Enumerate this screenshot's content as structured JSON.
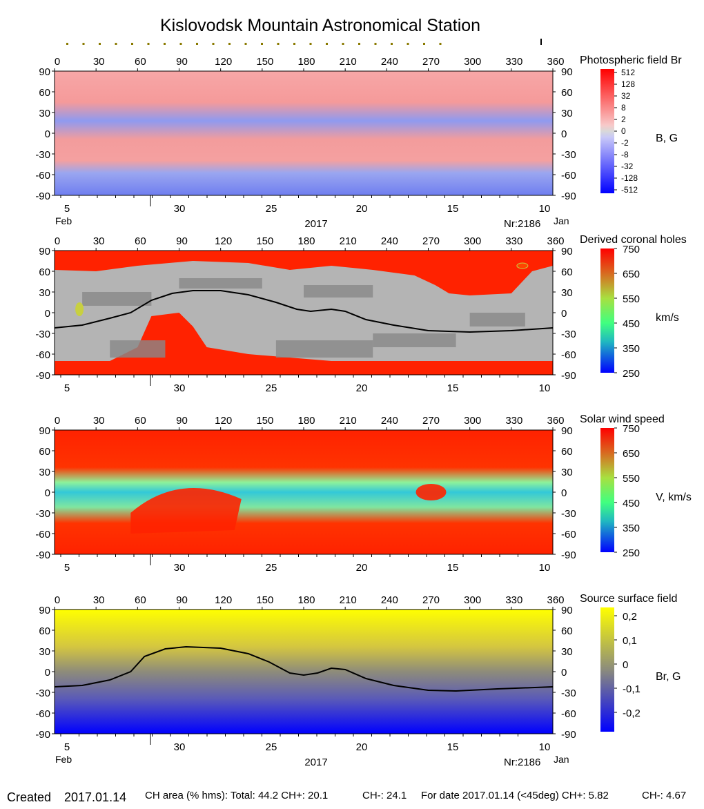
{
  "title": "Kislovodsk Mountain Astronomical Station",
  "footer": {
    "created_label": "Created",
    "created_date": "2017.01.14",
    "ch_area": "CH area (% hms): Total: 44.2 CH+: 20.1",
    "ch_minus": "CH-: 24.1",
    "for_date": "For date 2017.01.14 (<45deg) CH+: 5.82",
    "for_date_minus": "CH-: 4.67"
  },
  "axes": {
    "x_ticks": [
      "0",
      "30",
      "60",
      "90",
      "120",
      "150",
      "180",
      "210",
      "240",
      "270",
      "300",
      "330",
      "360"
    ],
    "y_ticks": [
      "90",
      "60",
      "30",
      "0",
      "-30",
      "-60",
      "-90"
    ],
    "date_ticks": [
      "5",
      "30",
      "25",
      "20",
      "15",
      "10"
    ],
    "date_left": "Feb",
    "date_right": "Jan",
    "year": "2017",
    "rotation": "Nr:2186"
  },
  "chart_data": [
    {
      "type": "heatmap",
      "title": "Photospheric field Br",
      "colorbar_label": "B, G",
      "colorbar_ticks": [
        "512",
        "128",
        "32",
        "8",
        "2",
        "0",
        "-2",
        "-8",
        "-32",
        "-128",
        "-512"
      ],
      "colors": {
        "positive": "#ff0000",
        "negative": "#0000ff",
        "zero": "#d9d9d9"
      },
      "xlim": [
        0,
        360
      ],
      "ylim": [
        -90,
        90
      ]
    },
    {
      "type": "heatmap",
      "title": "Derived coronal holes",
      "colorbar_label": "km/s",
      "colorbar_ticks": [
        "750",
        "650",
        "550",
        "450",
        "350",
        "250"
      ],
      "neutral_line": [
        [
          0,
          -22
        ],
        [
          20,
          -18
        ],
        [
          40,
          -8
        ],
        [
          55,
          0
        ],
        [
          70,
          18
        ],
        [
          85,
          28
        ],
        [
          100,
          32
        ],
        [
          120,
          32
        ],
        [
          140,
          26
        ],
        [
          160,
          15
        ],
        [
          175,
          5
        ],
        [
          185,
          2
        ],
        [
          200,
          5
        ],
        [
          210,
          2
        ],
        [
          225,
          -10
        ],
        [
          245,
          -18
        ],
        [
          270,
          -26
        ],
        [
          300,
          -28
        ],
        [
          330,
          -26
        ],
        [
          360,
          -22
        ]
      ],
      "xlim": [
        0,
        360
      ],
      "ylim": [
        -90,
        90
      ]
    },
    {
      "type": "heatmap",
      "title": "Solar wind speed",
      "colorbar_label": "V, km/s",
      "colorbar_ticks": [
        "750",
        "650",
        "550",
        "450",
        "350",
        "250"
      ],
      "xlim": [
        0,
        360
      ],
      "ylim": [
        -90,
        90
      ]
    },
    {
      "type": "heatmap",
      "title": "Source surface field",
      "colorbar_label": "Br, G",
      "colorbar_ticks": [
        "0,2",
        "0,1",
        "0",
        "-0,1",
        "-0,2"
      ],
      "neutral_line": [
        [
          0,
          -22
        ],
        [
          20,
          -20
        ],
        [
          40,
          -12
        ],
        [
          55,
          0
        ],
        [
          65,
          22
        ],
        [
          80,
          33
        ],
        [
          95,
          36
        ],
        [
          120,
          34
        ],
        [
          140,
          26
        ],
        [
          155,
          14
        ],
        [
          170,
          -2
        ],
        [
          180,
          -5
        ],
        [
          190,
          -2
        ],
        [
          200,
          5
        ],
        [
          210,
          3
        ],
        [
          225,
          -10
        ],
        [
          245,
          -20
        ],
        [
          270,
          -27
        ],
        [
          290,
          -28
        ],
        [
          320,
          -25
        ],
        [
          360,
          -22
        ]
      ],
      "xlim": [
        0,
        360
      ],
      "ylim": [
        -90,
        90
      ]
    }
  ]
}
